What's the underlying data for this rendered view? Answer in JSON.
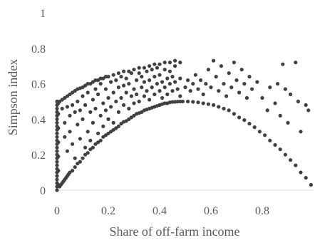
{
  "chart_data": {
    "type": "scatter",
    "title": "",
    "xlabel": "Share of off-farm income",
    "ylabel": "Simpson index",
    "xlim": [
      0,
      1
    ],
    "ylim": [
      0,
      1
    ],
    "x_ticks": [
      0,
      0.2,
      0.4,
      0.6,
      0.8
    ],
    "x_tick_labels": [
      "0",
      "0.2",
      "0.4",
      "0.6",
      "0.8"
    ],
    "y_ticks": [
      0,
      0.2,
      0.4,
      0.6,
      0.8,
      1
    ],
    "y_tick_labels": [
      "0",
      "0.2",
      "0.4",
      "0.6",
      "0.8",
      "1"
    ],
    "grid": false,
    "legend": "none",
    "marker_color": "#404040",
    "series": [
      {
        "points": [
          [
            0.0,
            0.0
          ],
          [
            0.0,
            0.02
          ],
          [
            0.0,
            0.04
          ],
          [
            0.0,
            0.06
          ],
          [
            0.0,
            0.08
          ],
          [
            0.0,
            0.1
          ],
          [
            0.0,
            0.12
          ],
          [
            0.0,
            0.14
          ],
          [
            0.0,
            0.16
          ],
          [
            0.0,
            0.18
          ],
          [
            0.0,
            0.2
          ],
          [
            0.0,
            0.22
          ],
          [
            0.0,
            0.24
          ],
          [
            0.0,
            0.26
          ],
          [
            0.0,
            0.28
          ],
          [
            0.0,
            0.3
          ],
          [
            0.0,
            0.32
          ],
          [
            0.0,
            0.34
          ],
          [
            0.0,
            0.36
          ],
          [
            0.0,
            0.38
          ],
          [
            0.0,
            0.4
          ],
          [
            0.0,
            0.42
          ],
          [
            0.0,
            0.44
          ],
          [
            0.0,
            0.46
          ],
          [
            0.0,
            0.48
          ],
          [
            0.0,
            0.5
          ],
          [
            0.005,
            0.03
          ],
          [
            0.005,
            0.11
          ],
          [
            0.005,
            0.19
          ],
          [
            0.005,
            0.27
          ],
          [
            0.005,
            0.35
          ],
          [
            0.005,
            0.43
          ],
          [
            0.005,
            0.49
          ],
          [
            0.01,
            0.02
          ],
          [
            0.015,
            0.03
          ],
          [
            0.02,
            0.04
          ],
          [
            0.025,
            0.05
          ],
          [
            0.03,
            0.06
          ],
          [
            0.035,
            0.07
          ],
          [
            0.04,
            0.08
          ],
          [
            0.045,
            0.09
          ],
          [
            0.05,
            0.1
          ],
          [
            0.06,
            0.11
          ],
          [
            0.07,
            0.13
          ],
          [
            0.08,
            0.15
          ],
          [
            0.09,
            0.16
          ],
          [
            0.1,
            0.18
          ],
          [
            0.11,
            0.2
          ],
          [
            0.12,
            0.21
          ],
          [
            0.13,
            0.23
          ],
          [
            0.14,
            0.24
          ],
          [
            0.15,
            0.26
          ],
          [
            0.16,
            0.27
          ],
          [
            0.17,
            0.28
          ],
          [
            0.18,
            0.3
          ],
          [
            0.19,
            0.31
          ],
          [
            0.2,
            0.32
          ],
          [
            0.21,
            0.33
          ],
          [
            0.22,
            0.34
          ],
          [
            0.23,
            0.35
          ],
          [
            0.24,
            0.36
          ],
          [
            0.25,
            0.375
          ],
          [
            0.26,
            0.385
          ],
          [
            0.27,
            0.39
          ],
          [
            0.28,
            0.4
          ],
          [
            0.29,
            0.41
          ],
          [
            0.3,
            0.42
          ],
          [
            0.31,
            0.43
          ],
          [
            0.32,
            0.435
          ],
          [
            0.33,
            0.44
          ],
          [
            0.34,
            0.45
          ],
          [
            0.35,
            0.455
          ],
          [
            0.36,
            0.46
          ],
          [
            0.37,
            0.465
          ],
          [
            0.38,
            0.47
          ],
          [
            0.39,
            0.475
          ],
          [
            0.4,
            0.48
          ],
          [
            0.41,
            0.485
          ],
          [
            0.42,
            0.49
          ],
          [
            0.43,
            0.49
          ],
          [
            0.44,
            0.495
          ],
          [
            0.45,
            0.497
          ],
          [
            0.46,
            0.498
          ],
          [
            0.47,
            0.499
          ],
          [
            0.48,
            0.5
          ],
          [
            0.49,
            0.5
          ],
          [
            0.51,
            0.5
          ],
          [
            0.53,
            0.498
          ],
          [
            0.55,
            0.495
          ],
          [
            0.57,
            0.49
          ],
          [
            0.59,
            0.485
          ],
          [
            0.61,
            0.48
          ],
          [
            0.63,
            0.47
          ],
          [
            0.65,
            0.46
          ],
          [
            0.67,
            0.45
          ],
          [
            0.69,
            0.43
          ],
          [
            0.71,
            0.41
          ],
          [
            0.73,
            0.395
          ],
          [
            0.75,
            0.375
          ],
          [
            0.77,
            0.355
          ],
          [
            0.79,
            0.33
          ],
          [
            0.81,
            0.31
          ],
          [
            0.83,
            0.28
          ],
          [
            0.85,
            0.255
          ],
          [
            0.87,
            0.23
          ],
          [
            0.89,
            0.2
          ],
          [
            0.91,
            0.17
          ],
          [
            0.93,
            0.14
          ],
          [
            0.95,
            0.1
          ],
          [
            0.97,
            0.07
          ],
          [
            0.99,
            0.03
          ],
          [
            0.01,
            0.5
          ],
          [
            0.02,
            0.51
          ],
          [
            0.03,
            0.52
          ],
          [
            0.04,
            0.53
          ],
          [
            0.05,
            0.54
          ],
          [
            0.06,
            0.55
          ],
          [
            0.07,
            0.56
          ],
          [
            0.08,
            0.57
          ],
          [
            0.09,
            0.575
          ],
          [
            0.1,
            0.58
          ],
          [
            0.11,
            0.59
          ],
          [
            0.12,
            0.6
          ],
          [
            0.13,
            0.6
          ],
          [
            0.14,
            0.61
          ],
          [
            0.15,
            0.62
          ],
          [
            0.16,
            0.62
          ],
          [
            0.17,
            0.63
          ],
          [
            0.18,
            0.63
          ],
          [
            0.19,
            0.64
          ],
          [
            0.2,
            0.64
          ],
          [
            0.22,
            0.65
          ],
          [
            0.24,
            0.66
          ],
          [
            0.26,
            0.67
          ],
          [
            0.28,
            0.67
          ],
          [
            0.3,
            0.68
          ],
          [
            0.32,
            0.69
          ],
          [
            0.34,
            0.69
          ],
          [
            0.36,
            0.7
          ],
          [
            0.38,
            0.71
          ],
          [
            0.4,
            0.71
          ],
          [
            0.42,
            0.72
          ],
          [
            0.44,
            0.72
          ],
          [
            0.46,
            0.73
          ],
          [
            0.48,
            0.72
          ],
          [
            0.02,
            0.46
          ],
          [
            0.03,
            0.38
          ],
          [
            0.03,
            0.3
          ],
          [
            0.04,
            0.47
          ],
          [
            0.04,
            0.22
          ],
          [
            0.05,
            0.42
          ],
          [
            0.05,
            0.33
          ],
          [
            0.06,
            0.48
          ],
          [
            0.06,
            0.26
          ],
          [
            0.07,
            0.44
          ],
          [
            0.07,
            0.18
          ],
          [
            0.08,
            0.37
          ],
          [
            0.08,
            0.5
          ],
          [
            0.09,
            0.29
          ],
          [
            0.09,
            0.45
          ],
          [
            0.1,
            0.53
          ],
          [
            0.1,
            0.4
          ],
          [
            0.11,
            0.24
          ],
          [
            0.11,
            0.48
          ],
          [
            0.12,
            0.33
          ],
          [
            0.12,
            0.55
          ],
          [
            0.13,
            0.44
          ],
          [
            0.13,
            0.28
          ],
          [
            0.14,
            0.51
          ],
          [
            0.14,
            0.38
          ],
          [
            0.15,
            0.57
          ],
          [
            0.15,
            0.46
          ],
          [
            0.16,
            0.32
          ],
          [
            0.16,
            0.54
          ],
          [
            0.17,
            0.42
          ],
          [
            0.17,
            0.6
          ],
          [
            0.18,
            0.49
          ],
          [
            0.18,
            0.36
          ],
          [
            0.19,
            0.57
          ],
          [
            0.19,
            0.45
          ],
          [
            0.2,
            0.52
          ],
          [
            0.2,
            0.4
          ],
          [
            0.21,
            0.61
          ],
          [
            0.21,
            0.47
          ],
          [
            0.22,
            0.55
          ],
          [
            0.22,
            0.38
          ],
          [
            0.23,
            0.62
          ],
          [
            0.23,
            0.5
          ],
          [
            0.24,
            0.58
          ],
          [
            0.24,
            0.44
          ],
          [
            0.25,
            0.64
          ],
          [
            0.25,
            0.52
          ],
          [
            0.26,
            0.48
          ],
          [
            0.26,
            0.59
          ],
          [
            0.27,
            0.55
          ],
          [
            0.27,
            0.63
          ],
          [
            0.28,
            0.46
          ],
          [
            0.28,
            0.6
          ],
          [
            0.29,
            0.53
          ],
          [
            0.29,
            0.66
          ],
          [
            0.3,
            0.57
          ],
          [
            0.3,
            0.49
          ],
          [
            0.31,
            0.62
          ],
          [
            0.31,
            0.54
          ],
          [
            0.32,
            0.66
          ],
          [
            0.32,
            0.5
          ],
          [
            0.33,
            0.58
          ],
          [
            0.33,
            0.64
          ],
          [
            0.34,
            0.53
          ],
          [
            0.34,
            0.61
          ],
          [
            0.35,
            0.67
          ],
          [
            0.35,
            0.56
          ],
          [
            0.36,
            0.62
          ],
          [
            0.36,
            0.51
          ],
          [
            0.37,
            0.68
          ],
          [
            0.37,
            0.58
          ],
          [
            0.38,
            0.54
          ],
          [
            0.38,
            0.64
          ],
          [
            0.39,
            0.6
          ],
          [
            0.39,
            0.69
          ],
          [
            0.4,
            0.56
          ],
          [
            0.4,
            0.65
          ],
          [
            0.41,
            0.52
          ],
          [
            0.41,
            0.61
          ],
          [
            0.42,
            0.68
          ],
          [
            0.42,
            0.58
          ],
          [
            0.43,
            0.63
          ],
          [
            0.43,
            0.54
          ],
          [
            0.44,
            0.6
          ],
          [
            0.44,
            0.67
          ],
          [
            0.45,
            0.56
          ],
          [
            0.45,
            0.64
          ],
          [
            0.46,
            0.61
          ],
          [
            0.46,
            0.7
          ],
          [
            0.47,
            0.57
          ],
          [
            0.48,
            0.63
          ],
          [
            0.48,
            0.53
          ],
          [
            0.5,
            0.58
          ],
          [
            0.51,
            0.62
          ],
          [
            0.52,
            0.56
          ],
          [
            0.53,
            0.6
          ],
          [
            0.54,
            0.65
          ],
          [
            0.55,
            0.57
          ],
          [
            0.56,
            0.62
          ],
          [
            0.57,
            0.54
          ],
          [
            0.58,
            0.6
          ],
          [
            0.59,
            0.68
          ],
          [
            0.6,
            0.58
          ],
          [
            0.61,
            0.73
          ],
          [
            0.62,
            0.64
          ],
          [
            0.63,
            0.56
          ],
          [
            0.64,
            0.7
          ],
          [
            0.65,
            0.6
          ],
          [
            0.66,
            0.53
          ],
          [
            0.67,
            0.66
          ],
          [
            0.68,
            0.58
          ],
          [
            0.69,
            0.72
          ],
          [
            0.7,
            0.62
          ],
          [
            0.71,
            0.55
          ],
          [
            0.72,
            0.68
          ],
          [
            0.73,
            0.6
          ],
          [
            0.74,
            0.52
          ],
          [
            0.75,
            0.64
          ],
          [
            0.76,
            0.57
          ],
          [
            0.78,
            0.61
          ],
          [
            0.8,
            0.52
          ],
          [
            0.82,
            0.45
          ],
          [
            0.83,
            0.58
          ],
          [
            0.85,
            0.49
          ],
          [
            0.86,
            0.6
          ],
          [
            0.87,
            0.42
          ],
          [
            0.88,
            0.71
          ],
          [
            0.89,
            0.57
          ],
          [
            0.9,
            0.38
          ],
          [
            0.91,
            0.54
          ],
          [
            0.93,
            0.72
          ],
          [
            0.94,
            0.5
          ],
          [
            0.95,
            0.33
          ],
          [
            0.97,
            0.48
          ],
          [
            0.98,
            0.45
          ]
        ]
      }
    ]
  }
}
